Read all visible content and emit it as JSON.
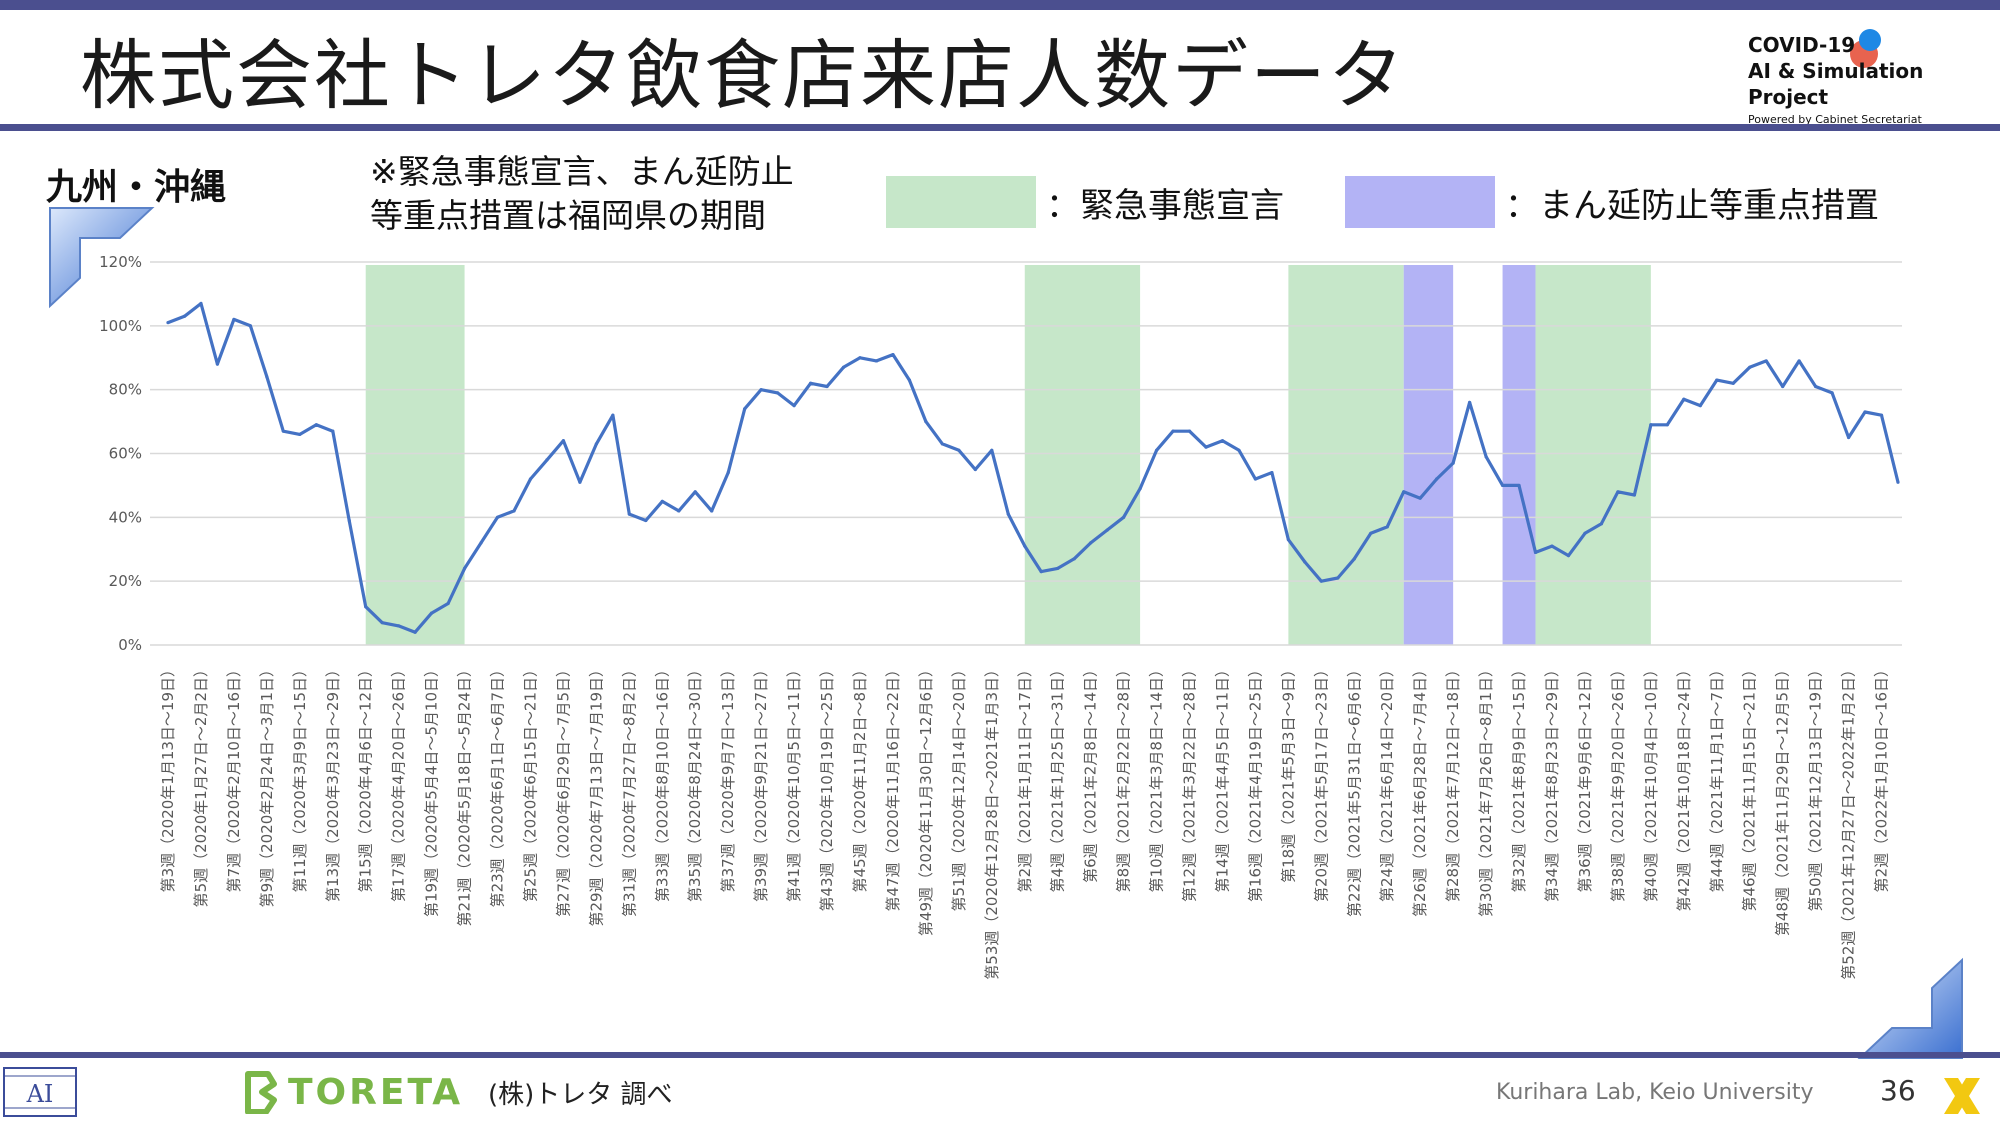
{
  "header": {
    "title": "株式会社トレタ飲食店来店人数データ",
    "covid_line1": "COVID-19",
    "covid_line2": "AI & Simulation Project",
    "covid_line3": "Powered by Cabinet Secretariat"
  },
  "region": "九州・沖縄",
  "note_line1": "※緊急事態宣言、まん延防止",
  "note_line2": "等重点措置は福岡県の期間",
  "legend": [
    {
      "label": "：緊急事態宣言",
      "color": "#c6e7c9"
    },
    {
      "label": "：まん延防止等重点措置",
      "color": "#b3b3f5"
    }
  ],
  "footer": {
    "logo_text": "TORETA",
    "source": "(株)トレタ 調べ",
    "lab": "Kurihara Lab, Keio University",
    "page_number": "36"
  },
  "colors": {
    "line": "#4472c4",
    "accent": "#4b4f8f",
    "emergency": "#c6e7c9",
    "priority": "#b3b3f5"
  },
  "chart_data": {
    "type": "line",
    "title": "",
    "xlabel": "",
    "ylabel": "",
    "ylim": [
      0,
      120
    ],
    "yticks": [
      "0%",
      "20%",
      "40%",
      "60%",
      "80%",
      "100%",
      "120%"
    ],
    "grid": true,
    "x_labels": [
      "第3週（2020年1月13日～19日）",
      "第5週（2020年1月27日～2月2日）",
      "第7週（2020年2月10日～16日）",
      "第9週（2020年2月24日～3月1日）",
      "第11週（2020年3月9日～15日）",
      "第13週（2020年3月23日～29日）",
      "第15週（2020年4月6日～12日）",
      "第17週（2020年4月20日～26日）",
      "第19週（2020年5月4日～5月10日）",
      "第21週（2020年5月18日～5月24日）",
      "第23週（2020年6月1日～6月7日）",
      "第25週（2020年6月15日～21日）",
      "第27週（2020年6月29日～7月5日）",
      "第29週（2020年7月13日～7月19日）",
      "第31週（2020年7月27日～8月2日）",
      "第33週（2020年8月10日～16日）",
      "第35週（2020年8月24日～30日）",
      "第37週（2020年9月7日～13日）",
      "第39週（2020年9月21日～27日）",
      "第41週（2020年10月5日～11日）",
      "第43週（2020年10月19日～25日）",
      "第45週（2020年11月2日～8日）",
      "第47週（2020年11月16日～22日）",
      "第49週（2020年11月30日～12月6日）",
      "第51週（2020年12月14日～20日）",
      "第53週（2020年12月28日～2021年1月3日）",
      "第2週（2021年1月11日～17日）",
      "第4週（2021年1月25日～31日）",
      "第6週（2021年2月8日～14日）",
      "第8週（2021年2月22日～28日）",
      "第10週（2021年3月8日～14日）",
      "第12週（2021年3月22日～28日）",
      "第14週（2021年4月5日～11日）",
      "第16週（2021年4月19日～25日）",
      "第18週（2021年5月3日～9日）",
      "第20週（2021年5月17日～23日）",
      "第22週（2021年5月31日～6月6日）",
      "第24週（2021年6月14日～20日）",
      "第26週（2021年6月28日～7月4日）",
      "第28週（2021年7月12日～18日）",
      "第30週（2021年7月26日～8月1日）",
      "第32週（2021年8月9日～15日）",
      "第34週（2021年8月23日～29日）",
      "第36週（2021年9月6日～12日）",
      "第38週（2021年9月20日～26日）",
      "第40週（2021年10月4日～10日）",
      "第42週（2021年10月18日～24日）",
      "第44週（2021年11月1日～7日）",
      "第46週（2021年11月15日～21日）",
      "第48週（2021年11月29日～12月5日）",
      "第50週（2021年12月13日～19日）",
      "第52週（2021年12月27日～2022年1月2日）",
      "第2週（2022年1月10日～16日）"
    ],
    "series": [
      {
        "values": [
          101,
          103,
          107,
          88,
          102,
          100,
          84,
          67,
          66,
          69,
          67,
          39,
          12,
          7,
          6,
          4,
          10,
          13,
          24,
          32,
          40,
          42,
          52,
          58,
          64,
          51,
          63,
          72,
          41,
          39,
          45,
          42,
          48,
          42,
          54,
          74,
          80,
          79,
          75,
          82,
          81,
          87,
          90,
          89,
          91,
          83,
          70,
          63,
          61,
          55,
          61,
          41,
          31,
          23,
          24,
          27,
          32,
          36,
          40,
          49,
          61,
          67,
          67,
          62,
          64,
          61,
          52,
          54,
          33,
          26,
          20,
          21,
          27,
          35,
          37,
          48,
          46,
          52,
          57,
          76,
          59,
          50,
          50,
          29,
          31,
          28,
          35,
          38,
          48,
          47,
          69,
          69,
          77,
          75,
          83,
          82,
          87,
          89,
          81,
          89,
          81,
          79,
          65,
          73,
          72,
          51
        ]
      }
    ],
    "bands": [
      {
        "type": "emergency",
        "from": 12,
        "to": 18
      },
      {
        "type": "emergency",
        "from": 52,
        "to": 59
      },
      {
        "type": "emergency",
        "from": 68,
        "to": 75
      },
      {
        "type": "priority",
        "from": 75,
        "to": 78
      },
      {
        "type": "priority",
        "from": 81,
        "to": 83
      },
      {
        "type": "emergency",
        "from": 83,
        "to": 90
      }
    ]
  }
}
